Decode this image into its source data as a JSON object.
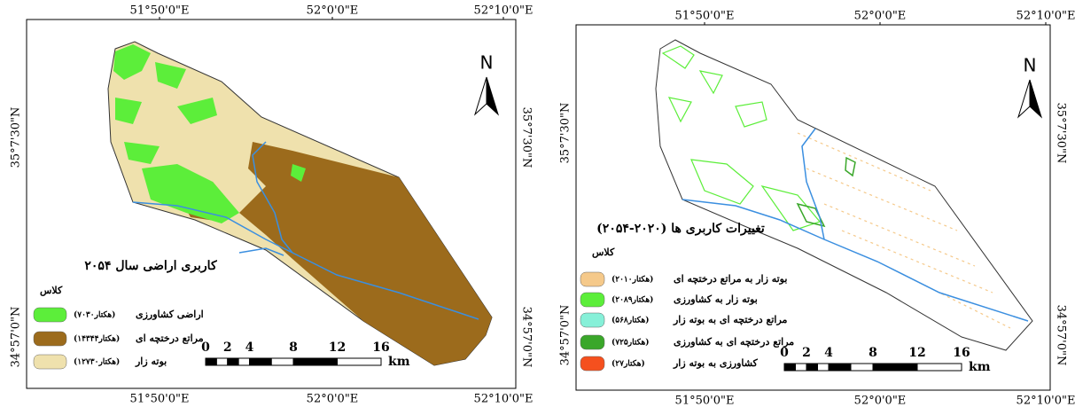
{
  "left_map": {
    "title": "کاربری اراضی سال ۲۰۵۴",
    "legend_heading": "کلاس",
    "legend_items": [
      {
        "label": "اراضی کشاورزی",
        "area": "(۷۰۳۰هکتار)",
        "color": "#5cee3a"
      },
      {
        "label": "مراتع درختچه ای",
        "area": "(۱۴۳۴۴هکتار)",
        "color": "#9c6b1c"
      },
      {
        "label": "بوته زار",
        "area": "(۱۲۷۳۰هکتار)",
        "color": "#efe1ad"
      }
    ],
    "north": "N",
    "scale_ticks": [
      0,
      2,
      4,
      8,
      12,
      16
    ],
    "scale_unit": "km",
    "lon_labels": [
      "51°50'0\"E",
      "52°0'0\"E",
      "52°10'0\"E"
    ],
    "lat_labels": [
      "35°7'30\"N",
      "34°57'0\"N"
    ]
  },
  "right_map": {
    "title": "تغییرات کاربری ها (۲۰۲۰-۲۰۵۴)",
    "legend_heading": "کلاس",
    "legend_items": [
      {
        "label": "بوته زار به مراتع درختچه ای",
        "area": "(۲۰۱۰هکتار)",
        "color": "#f5c98a"
      },
      {
        "label": "بوته زار به کشاورزی",
        "area": "(۲۰۸۹هکتار)",
        "color": "#5cee3a"
      },
      {
        "label": "مراتع درختچه ای به بوته زار",
        "area": "(۵۶۸هکتار)",
        "color": "#86f0d8"
      },
      {
        "label": "مراتع درختچه ای به کشاورزی",
        "area": "(۷۲۵هکتار)",
        "color": "#3aa72a"
      },
      {
        "label": "کشاورزی به بوته زار",
        "area": "(۲۷هکتار)",
        "color": "#f5501e"
      }
    ],
    "north": "N",
    "scale_ticks": [
      0,
      2,
      4,
      8,
      12,
      16
    ],
    "scale_unit": "km",
    "lon_labels": [
      "51°50'0\"E",
      "52°0'0\"E",
      "52°10'0\"E"
    ],
    "lat_labels": [
      "35°7'30\"N",
      "34°57'0\"N"
    ]
  }
}
